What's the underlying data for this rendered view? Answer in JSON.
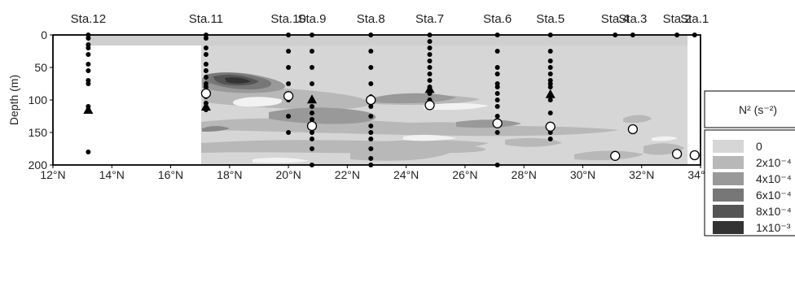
{
  "chart_data": {
    "type": "contour",
    "ylabel": "Depth (m)",
    "xlim": [
      12,
      34
    ],
    "ylim": [
      0,
      200
    ],
    "y_inverted": true,
    "x_ticks": [
      "12°N",
      "14°N",
      "16°N",
      "18°N",
      "20°N",
      "22°N",
      "24°N",
      "26°N",
      "28°N",
      "30°N",
      "32°N",
      "34°N"
    ],
    "y_ticks": [
      "0",
      "50",
      "100",
      "150",
      "200"
    ],
    "legend": {
      "title": "N² (s⁻²)",
      "placement": "right",
      "items": [
        {
          "label": "0",
          "color": "#d6d6d6"
        },
        {
          "label": "2x10⁻⁴",
          "color": "#b8b8b8"
        },
        {
          "label": "4x10⁻⁴",
          "color": "#999999"
        },
        {
          "label": "6x10⁻⁴",
          "color": "#777777"
        },
        {
          "label": "8x10⁻⁴",
          "color": "#555555"
        },
        {
          "label": "1x10⁻³",
          "color": "#333333"
        }
      ]
    },
    "stations": [
      {
        "name": "Sta.12",
        "lat": 13.2,
        "depths": [
          0,
          5,
          15,
          20,
          30,
          45,
          55,
          70,
          75,
          110,
          115,
          180
        ],
        "triangles": [
          115
        ],
        "circles": []
      },
      {
        "name": "Sta.11",
        "lat": 17.2,
        "depths": [
          0,
          5,
          20,
          30,
          45,
          55,
          65,
          75,
          80,
          95,
          105,
          115
        ],
        "triangles": [
          110
        ],
        "circles": [
          90
        ]
      },
      {
        "name": "Sta.10",
        "lat": 20.0,
        "depths": [
          0,
          25,
          50,
          75,
          100,
          125,
          150
        ],
        "triangles": [],
        "circles": [
          94
        ]
      },
      {
        "name": "Sta.9",
        "lat": 20.8,
        "depths": [
          0,
          25,
          50,
          75,
          110,
          120,
          130,
          140,
          150,
          160,
          175,
          200
        ],
        "triangles": [
          99
        ],
        "circles": [
          140
        ]
      },
      {
        "name": "Sta.8",
        "lat": 22.8,
        "depths": [
          0,
          25,
          50,
          75,
          95,
          110,
          125,
          140,
          150,
          160,
          175,
          190,
          200
        ],
        "triangles": [],
        "circles": [
          100
        ]
      },
      {
        "name": "Sta.7",
        "lat": 24.8,
        "depths": [
          0,
          10,
          20,
          30,
          40,
          50,
          60,
          70,
          80,
          90,
          100
        ],
        "triangles": [
          83
        ],
        "circles": [
          108
        ]
      },
      {
        "name": "Sta.6",
        "lat": 27.1,
        "depths": [
          0,
          25,
          50,
          60,
          75,
          80,
          90,
          100,
          110,
          125,
          150,
          200
        ],
        "triangles": [],
        "circles": [
          136
        ]
      },
      {
        "name": "Sta.5",
        "lat": 28.9,
        "depths": [
          0,
          25,
          40,
          50,
          60,
          70,
          75,
          80,
          100,
          120,
          150,
          160
        ],
        "triangles": [
          91
        ],
        "circles": [
          141
        ]
      },
      {
        "name": "Sta.4",
        "lat": 31.1,
        "depths": [
          0
        ],
        "triangles": [],
        "circles": [
          186
        ]
      },
      {
        "name": "Sta.3",
        "lat": 31.7,
        "depths": [
          0
        ],
        "triangles": [],
        "circles": [
          145
        ]
      },
      {
        "name": "Sta.2",
        "lat": 33.2,
        "depths": [
          0
        ],
        "triangles": [],
        "circles": [
          183
        ]
      },
      {
        "name": "Sta.1",
        "lat": 33.8,
        "depths": [
          0
        ],
        "triangles": [],
        "circles": [
          185
        ]
      }
    ]
  }
}
